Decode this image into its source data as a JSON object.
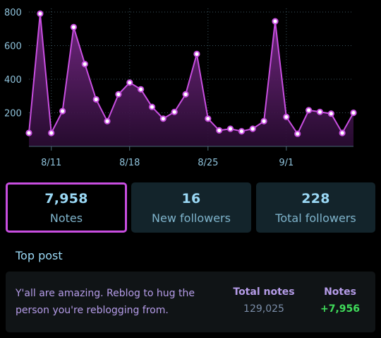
{
  "chart_data": {
    "type": "line",
    "y_ticks": [
      "200",
      "400",
      "600",
      "800"
    ],
    "x_ticks": [
      "8/11",
      "8/18",
      "8/25",
      "9/1"
    ],
    "ylim": [
      0,
      800
    ],
    "values": [
      80,
      790,
      80,
      210,
      710,
      490,
      280,
      150,
      310,
      380,
      340,
      235,
      165,
      205,
      310,
      550,
      165,
      95,
      105,
      90,
      105,
      150,
      745,
      175,
      75,
      215,
      205,
      195,
      80,
      200
    ],
    "line_color": "#c84ee0",
    "fill_color": "#5b1a66",
    "grid": true
  },
  "stats": [
    {
      "value": "7,958",
      "label": "Notes"
    },
    {
      "value": "16",
      "label": "New followers"
    },
    {
      "value": "228",
      "label": "Total followers"
    }
  ],
  "top_post": {
    "title": "Top post",
    "text": "Y'all are amazing. Reblog to hug the person you're reblogging from.",
    "total_notes_label": "Total notes",
    "total_notes_value": "129,025",
    "notes_label": "Notes",
    "notes_value": "+7,956"
  },
  "colors": {
    "accent": "#c84ee0",
    "label": "#9ad8f5",
    "positive": "#3fdc5a"
  }
}
